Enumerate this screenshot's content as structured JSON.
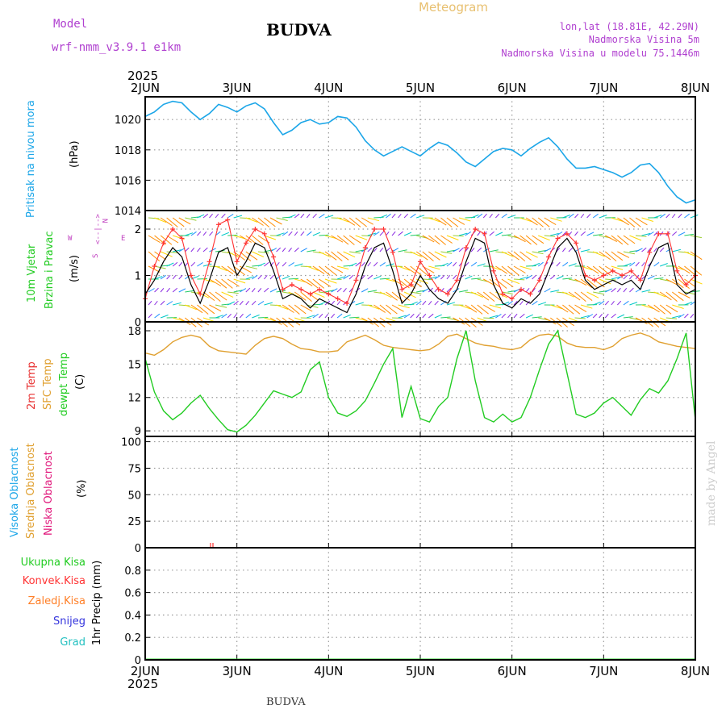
{
  "header": {
    "model_label": "Model",
    "model_name": "wrf-nmm_v3.9.1 e1km",
    "station": "BUDVA",
    "chart_title": "Meteogram",
    "coords": "lon,lat (18.81E, 42.29N)",
    "elevation": "Nadmorska Visina 5m",
    "model_elevation": "Nadmorska Visina u modelu 75.1446m",
    "watermark": "made by Angel",
    "footer_station": "BUDVA"
  },
  "colors": {
    "pressure": "#1ca6e8",
    "gust": "#ff3333",
    "wind_mean": "#000000",
    "temp2m": "#e83030",
    "sfc_temp": "#e0a030",
    "dewpt": "#22cc22",
    "cloud_high": "#1ca6e8",
    "cloud_mid": "#e0a030",
    "cloud_low": "#e0157a",
    "precip_total": "#22cc22",
    "precip_conv": "#ff3333",
    "precip_frozen": "#ff7f27",
    "precip_snow": "#3333dd",
    "precip_graupel": "#22c0c0",
    "grid": "#999999",
    "wind_compass": "#c040c0"
  },
  "time_axis": {
    "year": "2025",
    "ticks": [
      "2JUN",
      "3JUN",
      "4JUN",
      "5JUN",
      "6JUN",
      "7JUN",
      "8JUN"
    ]
  },
  "panels": {
    "pressure": {
      "label_lines": [
        "Pritisak na nivou mora"
      ],
      "unit": "(hPa)"
    },
    "wind": {
      "label_lines": [
        "10m Vjetar",
        "Brzina i Pravac"
      ],
      "unit": "(m/s)",
      "compass": [
        "N",
        "<--|-->",
        "S",
        "W",
        "E"
      ]
    },
    "temp": {
      "label_lines": [
        "2m Temp",
        "SFC Temp",
        "dewpt Temp"
      ],
      "unit": "(C)"
    },
    "cloud": {
      "label_lines": [
        "Visoka Oblacnost",
        "Srednja Oblacnost",
        "Niska Oblacnost"
      ],
      "unit": "(%)"
    },
    "precip": {
      "labels": [
        "Ukupna Kisa",
        "Konvek.Kisa",
        "Zaledj.Kisa",
        "Snijeg",
        "Grad"
      ],
      "unit": "1hr Precip (mm)"
    }
  },
  "chart_data": [
    {
      "type": "line",
      "panel": "pressure",
      "ylabel": "(hPa)",
      "ylim": [
        1014,
        1021.5
      ],
      "yticks": [
        1014,
        1016,
        1018,
        1020
      ],
      "x_days": [
        0.0,
        0.1,
        0.2,
        0.3,
        0.4,
        0.5,
        0.6,
        0.7,
        0.8,
        0.9,
        1.0,
        1.1,
        1.2,
        1.3,
        1.4,
        1.5,
        1.6,
        1.7,
        1.8,
        1.9,
        2.0,
        2.1,
        2.2,
        2.3,
        2.4,
        2.5,
        2.6,
        2.7,
        2.8,
        2.9,
        3.0,
        3.1,
        3.2,
        3.3,
        3.4,
        3.5,
        3.6,
        3.7,
        3.8,
        3.9,
        4.0,
        4.1,
        4.2,
        4.3,
        4.4,
        4.5,
        4.6,
        4.7,
        4.8,
        4.9,
        5.0,
        5.1,
        5.2,
        5.3,
        5.4,
        5.5,
        5.6,
        5.7,
        5.8,
        5.9,
        6.0
      ],
      "series": [
        {
          "values": [
            1020.2,
            1020.5,
            1021.0,
            1021.2,
            1021.1,
            1020.5,
            1020.0,
            1020.4,
            1021.0,
            1020.8,
            1020.5,
            1020.9,
            1021.1,
            1020.7,
            1019.8,
            1019.0,
            1019.3,
            1019.8,
            1020.0,
            1019.7,
            1019.8,
            1020.2,
            1020.1,
            1019.5,
            1018.6,
            1018.0,
            1017.6,
            1017.9,
            1018.2,
            1017.9,
            1017.6,
            1018.1,
            1018.5,
            1018.3,
            1017.8,
            1017.2,
            1016.9,
            1017.4,
            1017.9,
            1018.1,
            1018.0,
            1017.6,
            1018.1,
            1018.5,
            1018.8,
            1018.2,
            1017.4,
            1016.8,
            1016.8,
            1016.9,
            1016.7,
            1016.5,
            1016.2,
            1016.5,
            1017.0,
            1017.1,
            1016.5,
            1015.6,
            1014.9,
            1014.5,
            1014.7
          ]
        }
      ]
    },
    {
      "type": "line",
      "panel": "wind",
      "ylabel": "(m/s)",
      "ylim": [
        0,
        2.4
      ],
      "yticks": [
        0,
        1,
        2
      ],
      "x_days": [
        0.0,
        0.1,
        0.2,
        0.3,
        0.4,
        0.5,
        0.6,
        0.7,
        0.8,
        0.9,
        1.0,
        1.1,
        1.2,
        1.3,
        1.4,
        1.5,
        1.6,
        1.7,
        1.8,
        1.9,
        2.0,
        2.1,
        2.2,
        2.3,
        2.4,
        2.5,
        2.6,
        2.7,
        2.8,
        2.9,
        3.0,
        3.1,
        3.2,
        3.3,
        3.4,
        3.5,
        3.6,
        3.7,
        3.8,
        3.9,
        4.0,
        4.1,
        4.2,
        4.3,
        4.4,
        4.5,
        4.6,
        4.7,
        4.8,
        4.9,
        5.0,
        5.1,
        5.2,
        5.3,
        5.4,
        5.5,
        5.6,
        5.7,
        5.8,
        5.9,
        6.0
      ],
      "series": [
        {
          "values": [
            0.6,
            0.9,
            1.3,
            1.6,
            1.4,
            0.8,
            0.4,
            0.9,
            1.5,
            1.6,
            1.0,
            1.3,
            1.7,
            1.6,
            1.1,
            0.5,
            0.6,
            0.5,
            0.3,
            0.5,
            0.4,
            0.3,
            0.2,
            0.6,
            1.2,
            1.6,
            1.7,
            1.1,
            0.4,
            0.6,
            1.0,
            0.7,
            0.5,
            0.4,
            0.7,
            1.3,
            1.8,
            1.7,
            0.8,
            0.4,
            0.3,
            0.5,
            0.4,
            0.6,
            1.1,
            1.6,
            1.8,
            1.5,
            0.9,
            0.7,
            0.8,
            0.9,
            0.8,
            0.9,
            0.7,
            1.2,
            1.6,
            1.7,
            0.8,
            0.6,
            0.7
          ]
        },
        {
          "values": [
            0.5,
            1.2,
            1.7,
            2.0,
            1.8,
            1.0,
            0.6,
            1.3,
            2.1,
            2.2,
            1.3,
            1.7,
            2.0,
            1.9,
            1.4,
            0.7,
            0.8,
            0.7,
            0.6,
            0.7,
            0.6,
            0.5,
            0.4,
            0.9,
            1.6,
            2.0,
            2.0,
            1.5,
            0.7,
            0.8,
            1.3,
            1.0,
            0.7,
            0.6,
            0.9,
            1.6,
            2.0,
            1.9,
            1.1,
            0.6,
            0.5,
            0.7,
            0.6,
            0.9,
            1.4,
            1.8,
            1.9,
            1.7,
            1.0,
            0.9,
            1.0,
            1.1,
            1.0,
            1.1,
            0.9,
            1.5,
            1.9,
            1.9,
            1.1,
            0.8,
            1.0
          ]
        }
      ]
    },
    {
      "type": "line",
      "panel": "temp",
      "ylabel": "(C)",
      "ylim": [
        8.5,
        18.8
      ],
      "yticks": [
        9,
        12,
        15,
        18
      ],
      "x_days": [
        0.0,
        0.1,
        0.2,
        0.3,
        0.4,
        0.5,
        0.6,
        0.7,
        0.8,
        0.9,
        1.0,
        1.1,
        1.2,
        1.3,
        1.4,
        1.5,
        1.6,
        1.7,
        1.8,
        1.9,
        2.0,
        2.1,
        2.2,
        2.3,
        2.4,
        2.5,
        2.6,
        2.7,
        2.8,
        2.9,
        3.0,
        3.1,
        3.2,
        3.3,
        3.4,
        3.5,
        3.6,
        3.7,
        3.8,
        3.9,
        4.0,
        4.1,
        4.2,
        4.3,
        4.4,
        4.5,
        4.6,
        4.7,
        4.8,
        4.9,
        5.0,
        5.1,
        5.2,
        5.3,
        5.4,
        5.5,
        5.6,
        5.7,
        5.8,
        5.9,
        6.0
      ],
      "series": [
        {
          "values": [
            16.0,
            15.8,
            16.3,
            17.0,
            17.4,
            17.6,
            17.4,
            16.6,
            16.2,
            16.1,
            16.0,
            15.9,
            16.7,
            17.3,
            17.5,
            17.3,
            16.8,
            16.4,
            16.3,
            16.1,
            16.1,
            16.2,
            17.0,
            17.3,
            17.6,
            17.2,
            16.7,
            16.5,
            16.4,
            16.3,
            16.2,
            16.3,
            16.8,
            17.5,
            17.7,
            17.3,
            16.9,
            16.7,
            16.6,
            16.4,
            16.3,
            16.5,
            17.2,
            17.6,
            17.7,
            17.5,
            16.9,
            16.6,
            16.5,
            16.5,
            16.3,
            16.6,
            17.3,
            17.6,
            17.8,
            17.5,
            17.0,
            16.8,
            16.6,
            16.5,
            16.4
          ]
        },
        {
          "values": [
            15.5,
            12.5,
            10.8,
            10.0,
            10.6,
            11.5,
            12.2,
            11.0,
            10.0,
            9.1,
            8.9,
            9.5,
            10.4,
            11.5,
            12.6,
            12.3,
            12.0,
            12.5,
            14.5,
            15.2,
            12.0,
            10.6,
            10.3,
            10.8,
            11.7,
            13.3,
            15.0,
            16.4,
            10.2,
            13.0,
            10.1,
            9.8,
            11.2,
            12.0,
            15.5,
            18.0,
            13.5,
            10.2,
            9.8,
            10.5,
            9.8,
            10.2,
            12.0,
            14.5,
            16.8,
            18.0,
            14.2,
            10.5,
            10.2,
            10.6,
            11.5,
            12.0,
            11.2,
            10.4,
            11.8,
            12.8,
            12.4,
            13.5,
            15.5,
            17.8,
            10.0
          ]
        }
      ]
    },
    {
      "type": "bar",
      "panel": "cloud",
      "ylabel": "(%)",
      "ylim": [
        0,
        105
      ],
      "yticks": [
        0,
        25,
        50,
        75,
        100
      ],
      "series": [
        {
          "values": [
            0,
            0,
            0,
            0,
            0,
            0,
            0
          ]
        },
        {
          "values": [
            0,
            0,
            0,
            0,
            0,
            0,
            0
          ]
        },
        {
          "values": [
            0,
            0,
            0,
            0,
            0,
            0,
            0
          ]
        }
      ]
    },
    {
      "type": "bar",
      "panel": "precip",
      "ylabel": "1hr Precip (mm)",
      "ylim": [
        0,
        1.0
      ],
      "yticks": [
        0,
        0.2,
        0.4,
        0.6,
        0.8
      ],
      "series": [
        {
          "values": [
            0,
            0,
            0,
            0,
            0,
            0,
            0
          ]
        }
      ]
    }
  ]
}
